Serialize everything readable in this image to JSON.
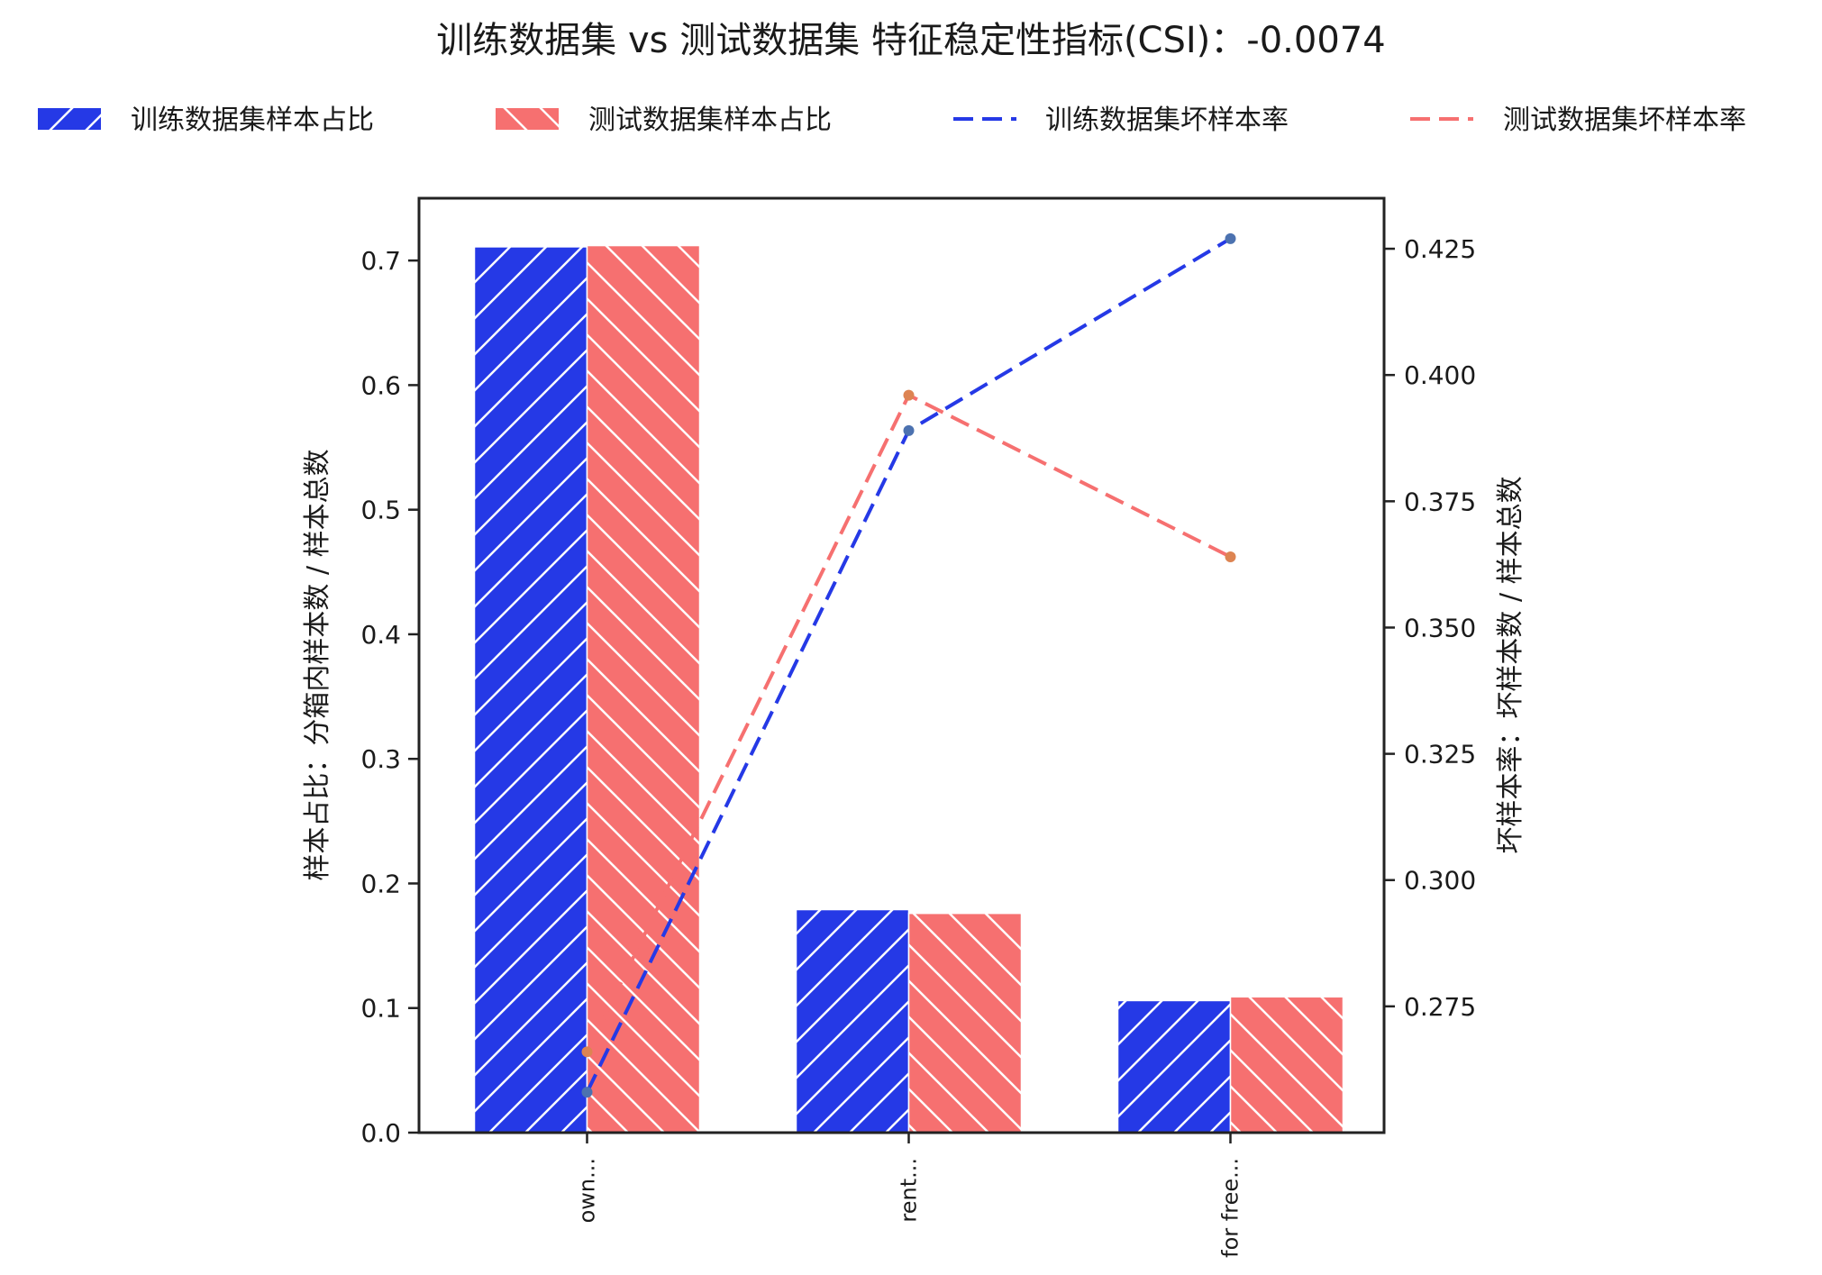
{
  "chart_data": {
    "type": "bar",
    "title": "训练数据集 vs 测试数据集 特征稳定性指标(CSI)：-0.0074",
    "categories": [
      "own...",
      "rent...",
      "for free..."
    ],
    "ylabel_left": "样本占比：分箱内样本数 / 样本总数",
    "ylabel_right": "坏样本率：坏样本数 / 样本总数",
    "ylim_left": [
      0,
      0.75
    ],
    "ylim_right": [
      0.25,
      0.435
    ],
    "yticks_left": [
      0.0,
      0.1,
      0.2,
      0.3,
      0.4,
      0.5,
      0.6,
      0.7
    ],
    "yticks_right": [
      0.275,
      0.3,
      0.325,
      0.35,
      0.375,
      0.4,
      0.425
    ],
    "ytick_labels_left": [
      "0.0",
      "0.1",
      "0.2",
      "0.3",
      "0.4",
      "0.5",
      "0.6",
      "0.7"
    ],
    "ytick_labels_right": [
      "0.275",
      "0.300",
      "0.325",
      "0.350",
      "0.375",
      "0.400",
      "0.425"
    ],
    "bar_series": [
      {
        "name": "训练数据集样本占比",
        "color": "#2539e6",
        "hatch": "forward",
        "values": [
          0.711,
          0.179,
          0.106
        ]
      },
      {
        "name": "测试数据集样本占比",
        "color": "#f67070",
        "hatch": "backward",
        "values": [
          0.712,
          0.176,
          0.109
        ]
      }
    ],
    "line_series": [
      {
        "name": "训练数据集坏样本率",
        "color": "#2539e6",
        "marker_color": "#4c72b0",
        "values": [
          0.258,
          0.389,
          0.427
        ]
      },
      {
        "name": "测试数据集坏样本率",
        "color": "#f67070",
        "marker_color": "#dd8452",
        "values": [
          0.266,
          0.396,
          0.364
        ]
      }
    ],
    "legend_position": "top",
    "grid": false
  }
}
